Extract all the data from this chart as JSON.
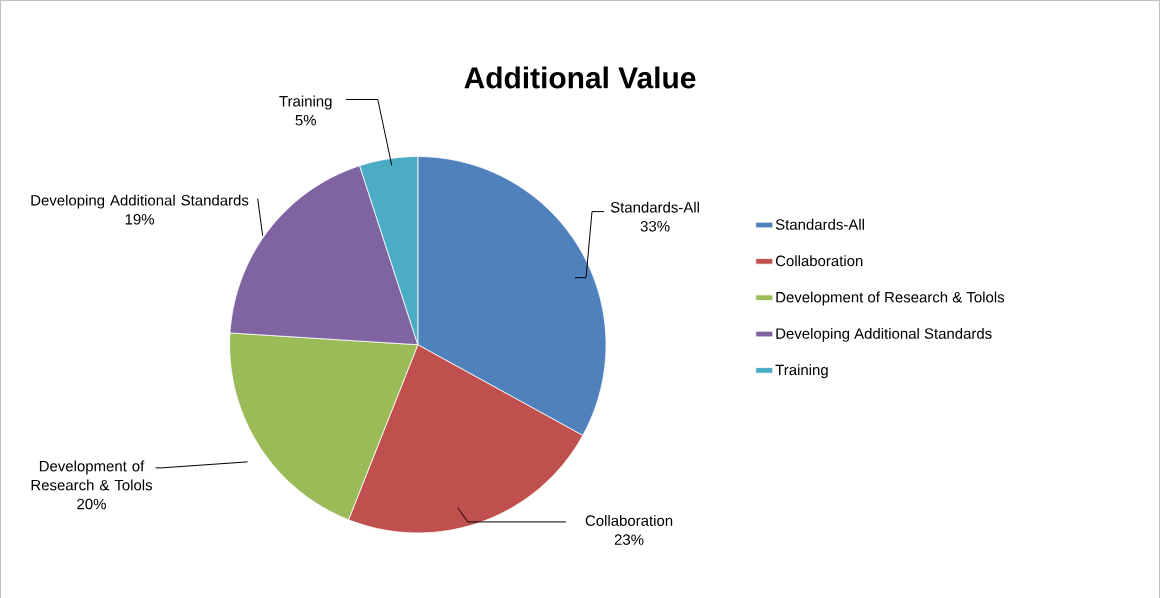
{
  "chart_data": {
    "type": "pie",
    "title": "Additional Value",
    "categories": [
      "Standards-All",
      "Collaboration",
      "Development of Research & Tolols",
      "Developing Additional Standards",
      "Training"
    ],
    "values": [
      33,
      23,
      20,
      19,
      5
    ],
    "value_labels": [
      "33%",
      "23%",
      "20%",
      "19%",
      "5%"
    ],
    "colors": [
      "#4f81bd",
      "#c0504d",
      "#9bbb59",
      "#8064a2",
      "#4bacc6"
    ],
    "legend": "right"
  }
}
